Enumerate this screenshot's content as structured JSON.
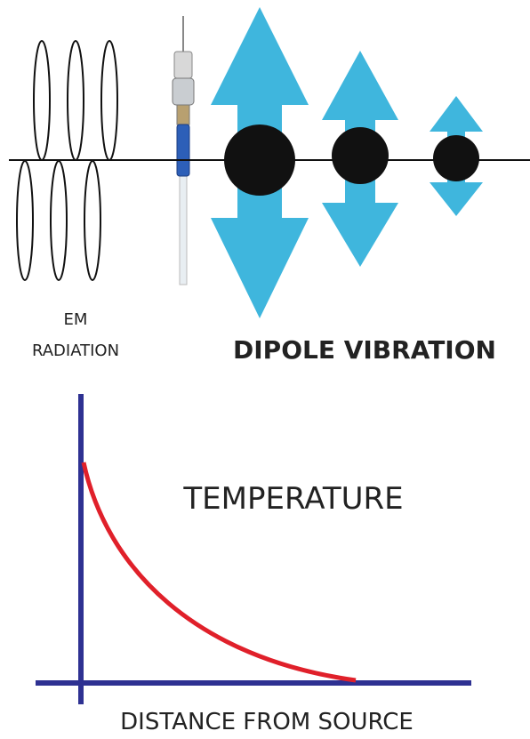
{
  "em_radiation": {
    "line1": "EM",
    "line2": "RADIATION"
  },
  "dipole_vibration": "DIPOLE VIBRATION",
  "graph": {
    "y_label": "TEMPERATURE",
    "x_label": "DISTANCE FROM SOURCE"
  }
}
